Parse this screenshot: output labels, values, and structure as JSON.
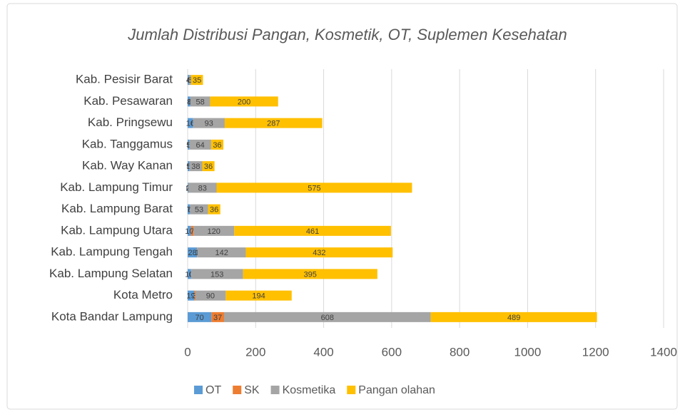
{
  "chart_data": {
    "type": "bar",
    "stacked": true,
    "orientation": "horizontal",
    "title": "Jumlah Distribusi Pangan, Kosmetik, OT, Suplemen Kesehatan",
    "categories": [
      "Kota Bandar Lampung",
      "Kota Metro",
      "Kab. Lampung Selatan",
      "Kab. Lampung Tengah",
      "Kab. Lampung Utara",
      "Kab. Lampung Barat",
      "Kab. Lampung Timur",
      "Kab. Way Kanan",
      "Kab. Tanggamus",
      "Kab. Pringsewu",
      "Kab. Pesawaran",
      "Kab. Pesisir Barat"
    ],
    "series": [
      {
        "name": "OT",
        "color": "#5b9bd5",
        "values": [
          70,
          19,
          10,
          28,
          10,
          7,
          2,
          5,
          5,
          16,
          8,
          4
        ]
      },
      {
        "name": "SK",
        "color": "#ed7d31",
        "values": [
          37,
          3,
          0,
          1,
          7,
          0,
          0,
          0,
          0,
          0,
          0,
          0
        ]
      },
      {
        "name": "Kosmetika",
        "color": "#a5a5a5",
        "values": [
          608,
          90,
          153,
          142,
          120,
          53,
          83,
          38,
          64,
          93,
          58,
          6
        ]
      },
      {
        "name": "Pangan olahan",
        "color": "#ffc000",
        "values": [
          489,
          194,
          395,
          432,
          461,
          36,
          575,
          36,
          36,
          287,
          200,
          35
        ]
      }
    ],
    "xlim": [
      0,
      1400
    ],
    "xticks": [
      0,
      200,
      400,
      600,
      800,
      1000,
      1200,
      1400
    ],
    "grid": true,
    "legend": "bottom"
  }
}
